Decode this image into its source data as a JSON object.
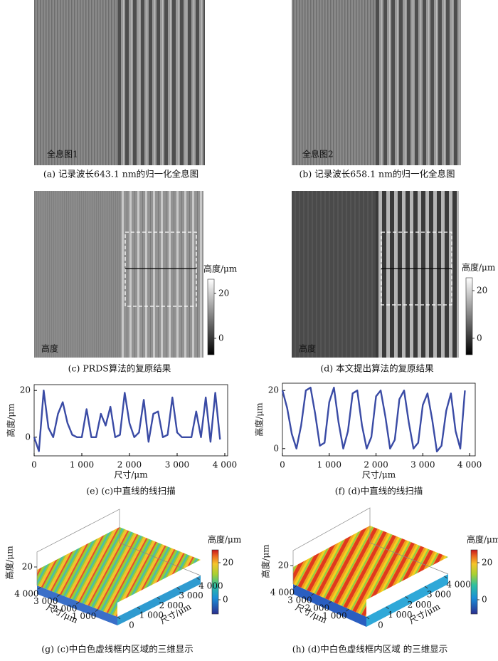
{
  "images": [
    {
      "overlay_label": "全息图1",
      "caption": "(a) 记录波长643.1 nm的归一化全息图"
    },
    {
      "overlay_label": "全息图2",
      "caption": "(b) 记录波长658.1 nm的归一化全息图"
    },
    {
      "overlay_label": "高度",
      "caption": "(c) PRDS算法的复原结果",
      "colorbar": {
        "title": "高度/μm",
        "lim": [
          -7.3,
          26.3
        ],
        "ticks": [
          0,
          20
        ]
      }
    },
    {
      "overlay_label": "高度",
      "caption": "(d) 本文提出算法的复原结果",
      "colorbar": {
        "title": "高度/μm",
        "lim": [
          -6.9,
          25.4
        ],
        "ticks": [
          0,
          20
        ]
      }
    }
  ],
  "chart_data": [
    {
      "type": "line",
      "caption": "(e) (c)中直线的线扫描",
      "xlabel": "尺寸/μm",
      "ylabel": "高度/μm",
      "x": [
        0,
        100,
        200,
        300,
        400,
        500,
        600,
        700,
        800,
        900,
        1000,
        1100,
        1200,
        1300,
        1400,
        1500,
        1600,
        1700,
        1800,
        1900,
        2000,
        2100,
        2200,
        2300,
        2400,
        2500,
        2600,
        2700,
        2800,
        2900,
        3000,
        3100,
        3200,
        3300,
        3400,
        3500,
        3600,
        3700,
        3800,
        3900
      ],
      "series": [
        {
          "color": "#3a4ba5",
          "values": [
            0,
            -6,
            20,
            4,
            0,
            10,
            15,
            6,
            1,
            0,
            0,
            12,
            0,
            0,
            10,
            5,
            13,
            0,
            1,
            19,
            6,
            0,
            2,
            16,
            -2,
            10,
            11,
            0,
            1,
            17,
            2,
            0,
            0,
            0,
            11,
            0,
            17,
            -2,
            19,
            -1
          ]
        }
      ],
      "xlim": [
        0,
        4060
      ],
      "ylim": [
        -8,
        22.5
      ],
      "xticks": [
        0,
        {
          "value": 1000,
          "label": "1 000"
        },
        {
          "value": 2000,
          "label": "2 000"
        },
        {
          "value": 3000,
          "label": "3 000"
        },
        {
          "value": 4000,
          "label": "4 000"
        }
      ],
      "yticks": [
        0,
        20
      ]
    },
    {
      "type": "line",
      "caption": "(f) (d)中直线的线扫描",
      "xlabel": "尺寸/μm",
      "ylabel": "高度/μm",
      "x": [
        0,
        100,
        200,
        300,
        400,
        500,
        600,
        700,
        800,
        900,
        1000,
        1100,
        1200,
        1300,
        1400,
        1500,
        1600,
        1700,
        1800,
        1900,
        2000,
        2100,
        2200,
        2300,
        2400,
        2500,
        2600,
        2700,
        2800,
        2900,
        3000,
        3100,
        3200,
        3300,
        3400,
        3500,
        3600,
        3700,
        3800,
        3900
      ],
      "series": [
        {
          "color": "#3a4ba5",
          "values": [
            20,
            14,
            5,
            0,
            8,
            20,
            21,
            12,
            1,
            2,
            16,
            21,
            9,
            0,
            6,
            19,
            20,
            8,
            0,
            4,
            18,
            20,
            11,
            0,
            3,
            17,
            20,
            9,
            0,
            2,
            15,
            19,
            10,
            -1,
            1,
            13,
            19,
            6,
            0,
            20
          ]
        }
      ],
      "xlim": [
        0,
        4120
      ],
      "ylim": [
        -2.5,
        22.5
      ],
      "xticks": [
        0,
        {
          "value": 1000,
          "label": "1 000"
        },
        {
          "value": 2000,
          "label": "2 000"
        },
        {
          "value": 3000,
          "label": "3 000"
        },
        {
          "value": 4000,
          "label": "4 000"
        }
      ],
      "yticks": [
        0,
        20
      ]
    }
  ],
  "surfaces": [
    {
      "caption": "(g) (c)中白色虚线框内区域的三维显示",
      "zlabel": "高度/μm",
      "xlabel": "尺寸/μm",
      "ylabel": "尺寸/μm",
      "xlim": [
        0,
        4200
      ],
      "ylim": [
        0,
        4200
      ],
      "zlim": [
        0,
        30
      ],
      "xticks": [
        0,
        {
          "value": 1000,
          "label": "1 000"
        },
        {
          "value": 2000,
          "label": "2 000"
        },
        {
          "value": 3000,
          "label": "3 000"
        },
        {
          "value": 4000,
          "label": "4 000"
        }
      ],
      "yticks": [
        {
          "value": 1000,
          "label": "1 000"
        },
        {
          "value": 2000,
          "label": "2 000"
        },
        {
          "value": 3000,
          "label": "3 000"
        },
        {
          "value": 4000,
          "label": "4 000"
        }
      ],
      "zticks": [
        20
      ],
      "colorbar": {
        "title": "高度/μm",
        "lim": [
          -7.7,
          26.9
        ],
        "ticks": [
          0,
          20
        ]
      }
    },
    {
      "caption": "(h) (d)中白色虚线框内区域 的三维显示",
      "zlabel": "高度/μm",
      "xlabel": "尺寸/μm",
      "ylabel": "尺寸/μm",
      "xlim": [
        0,
        4200
      ],
      "ylim": [
        0,
        4200
      ],
      "zlim": [
        0,
        30
      ],
      "xticks": [
        0,
        {
          "value": 1000,
          "label": "1 000"
        },
        {
          "value": 2000,
          "label": "2 000"
        },
        {
          "value": 3000,
          "label": "3 000"
        },
        {
          "value": 4000,
          "label": "4 000"
        }
      ],
      "yticks": [
        {
          "value": 1000,
          "label": "1 000"
        },
        {
          "value": 2000,
          "label": "2 000"
        },
        {
          "value": 3000,
          "label": "3 000"
        },
        {
          "value": 4000,
          "label": "4 000"
        }
      ],
      "zticks": [
        20
      ],
      "colorbar": {
        "title": "高度/μm",
        "lim": [
          -7.7,
          26.9
        ],
        "ticks": [
          0,
          20
        ]
      }
    }
  ]
}
